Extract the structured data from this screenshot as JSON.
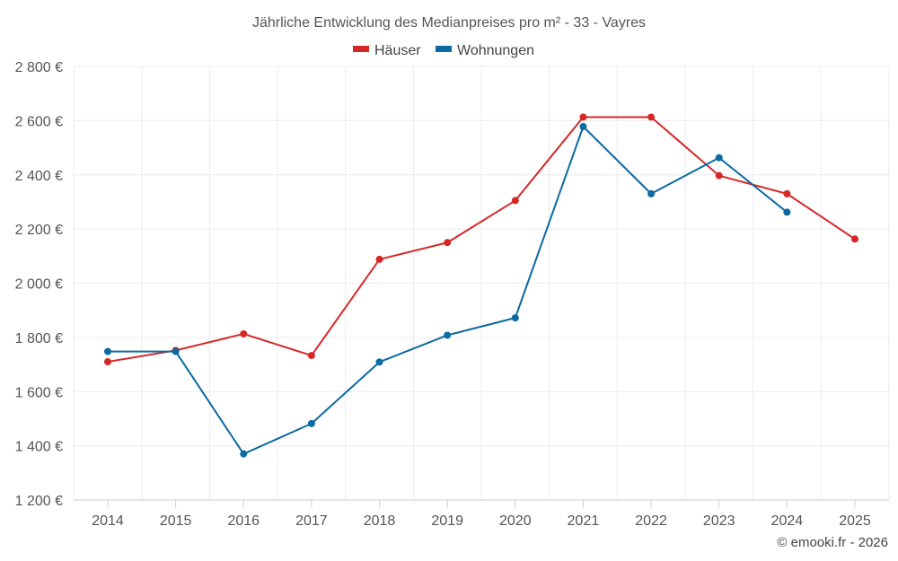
{
  "chart_data": {
    "type": "line",
    "title": "Jährliche Entwicklung des Medianpreises pro m² - 33 - Vayres",
    "categories": [
      "2014",
      "2015",
      "2016",
      "2017",
      "2018",
      "2019",
      "2020",
      "2021",
      "2022",
      "2023",
      "2024",
      "2025"
    ],
    "series": [
      {
        "name": "Häuser",
        "color": "#d62728",
        "values": [
          1710,
          1752,
          1813,
          1733,
          2088,
          2150,
          2305,
          2613,
          2613,
          2397,
          2330,
          2163
        ]
      },
      {
        "name": "Wohnungen",
        "color": "#0a6aa1",
        "values": [
          1748,
          1748,
          1370,
          1482,
          1709,
          1808,
          1872,
          2578,
          2330,
          2463,
          2262,
          null
        ]
      }
    ],
    "ylim": [
      1200,
      2800
    ],
    "yticks": [
      1200,
      1400,
      1600,
      1800,
      2000,
      2200,
      2400,
      2600,
      2800
    ],
    "ytick_labels": [
      "1 200 €",
      "1 400 €",
      "1 600 €",
      "1 800 €",
      "2 000 €",
      "2 200 €",
      "2 400 €",
      "2 600 €",
      "2 800 €"
    ],
    "grid": true,
    "legend_position": "top-center",
    "credit": "© emooki.fr - 2026"
  }
}
